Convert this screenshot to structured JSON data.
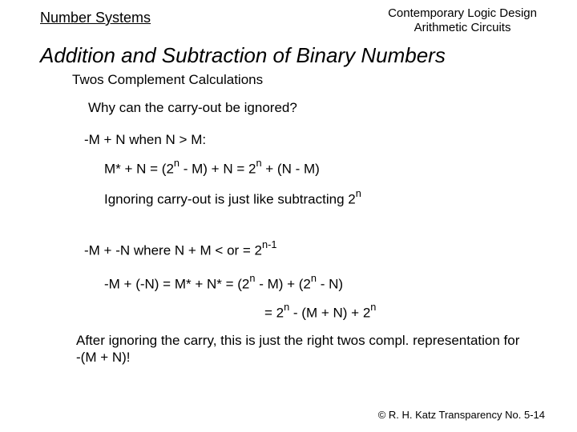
{
  "header": {
    "left": "Number Systems",
    "right_line1": "Contemporary Logic Design",
    "right_line2": "Arithmetic Circuits"
  },
  "title": "Addition and Subtraction of Binary Numbers",
  "subtitle": "Twos Complement Calculations",
  "body": {
    "q": "Why can the carry-out be ignored?",
    "case1": "-M + N when N > M:",
    "eq1_a": "M*  +  N  =  (2",
    "eq1_b": "  - M)  +  N  =  2",
    "eq1_c": "  +  (N - M)",
    "sup_n": "n",
    "note1_a": "Ignoring carry-out is just like subtracting 2",
    "case2_a": "-M + -N where N + M < or = 2",
    "case2_sup": "n-1",
    "eq2_a": "-M + (-N) = M* + N* = (2",
    "eq2_b": " - M) + (2",
    "eq2_c": " - N)",
    "eq3_a": "= 2",
    "eq3_b": " - (M + N)  +  2",
    "note2": "After ignoring the carry, this is just the right twos compl. representation for -(M + N)!"
  },
  "footer": "© R. H. Katz   Transparency No. 5-14",
  "style": {
    "font_family": "Comic Sans MS",
    "text_color": "#000000",
    "background": "#ffffff",
    "title_fontsize": 26,
    "body_fontsize": 17,
    "header_fontsize": 18,
    "footer_fontsize": 13
  }
}
